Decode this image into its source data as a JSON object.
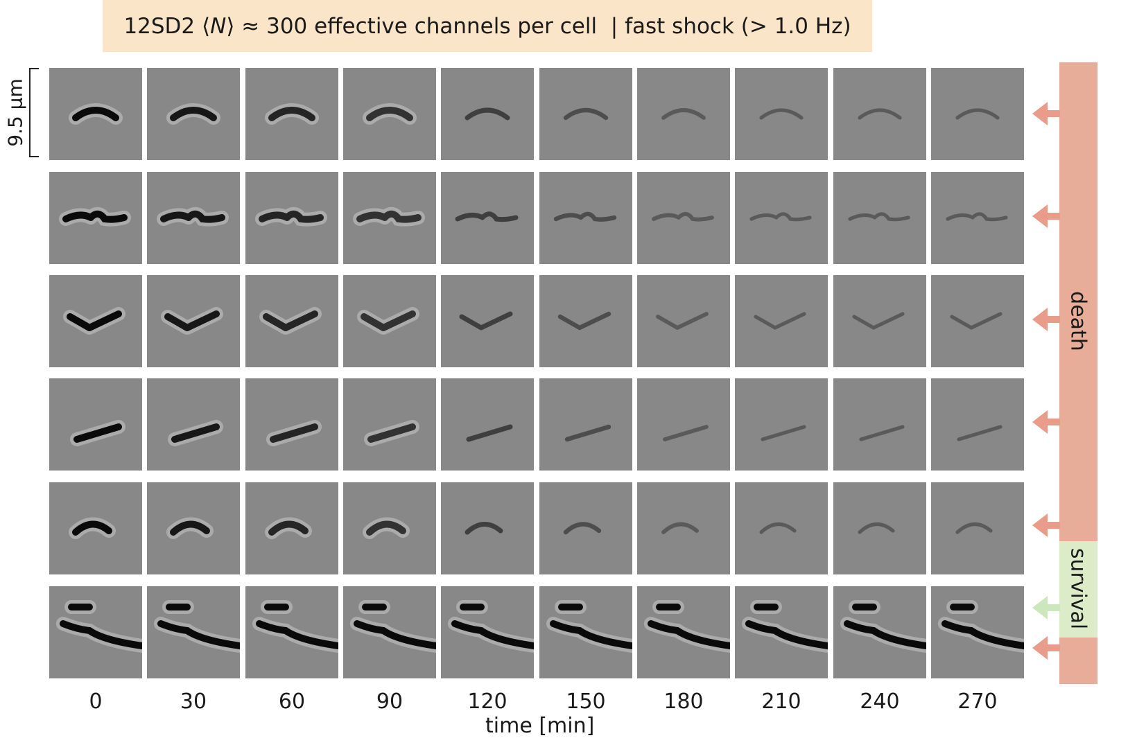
{
  "title": {
    "prefix": "12SD2 ⟨",
    "N": "N",
    "middle": "⟩ ≈ 300 effective channels per cell",
    "separator": "|",
    "suffix": "fast shock (> 1.0 Hz)"
  },
  "scale_bar": {
    "label": "9.5 µm"
  },
  "time_axis": {
    "label": "time [min]",
    "ticks": [
      "0",
      "30",
      "60",
      "90",
      "120",
      "150",
      "180",
      "210",
      "240",
      "270"
    ]
  },
  "cell_rows": [
    {
      "id": 1,
      "fate": "death"
    },
    {
      "id": 2,
      "fate": "death"
    },
    {
      "id": 3,
      "fate": "death"
    },
    {
      "id": 4,
      "fate": "death"
    },
    {
      "id": 5,
      "fate": "death"
    },
    {
      "id": 6,
      "fate": "survival"
    },
    {
      "id": 7,
      "fate": "death"
    }
  ],
  "fate_labels": {
    "death": "death",
    "survival": "survival"
  },
  "colors": {
    "death": "#e8ad99",
    "survival": "#dcebc8",
    "death_arrow": "#ea9c8a",
    "survival_arrow": "#cde7bd",
    "banner": "#fbe5c8",
    "tile_background": "#888888"
  }
}
